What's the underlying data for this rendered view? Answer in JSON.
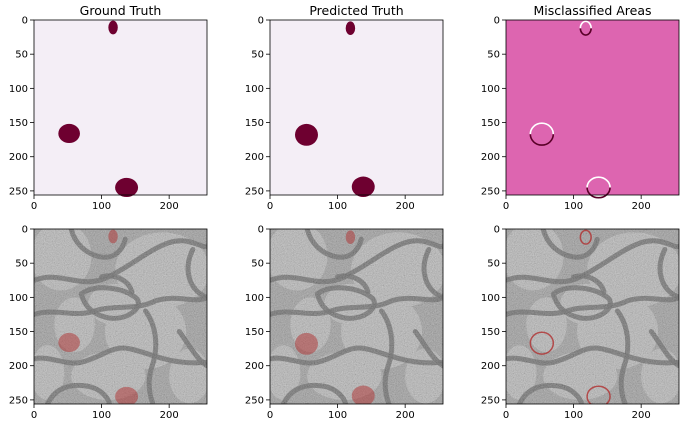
{
  "chart_data": [
    {
      "type": "heatmap",
      "title": "Ground Truth",
      "image": "binary-mask",
      "colormap": [
        "#f4eef6",
        "#6e0030"
      ],
      "xlim": [
        0,
        256
      ],
      "ylim": [
        256,
        0
      ],
      "xticks": [
        0,
        100,
        200
      ],
      "yticks": [
        0,
        50,
        100,
        150,
        200,
        250
      ],
      "blobs": [
        {
          "label": "top",
          "cx": 117,
          "cy": 11,
          "rx": 7,
          "ry": 10
        },
        {
          "label": "left",
          "cx": 52,
          "cy": 166,
          "rx": 16,
          "ry": 14
        },
        {
          "label": "bottom",
          "cx": 137,
          "cy": 245,
          "rx": 17,
          "ry": 14
        }
      ]
    },
    {
      "type": "heatmap",
      "title": "Predicted Truth",
      "image": "binary-mask",
      "colormap": [
        "#f4eef6",
        "#6e0030"
      ],
      "xlim": [
        0,
        256
      ],
      "ylim": [
        256,
        0
      ],
      "xticks": [
        0,
        100,
        200
      ],
      "yticks": [
        0,
        50,
        100,
        150,
        200,
        250
      ],
      "blobs": [
        {
          "label": "top",
          "cx": 119,
          "cy": 12,
          "rx": 7,
          "ry": 10
        },
        {
          "label": "left",
          "cx": 54,
          "cy": 168,
          "rx": 17,
          "ry": 16
        },
        {
          "label": "bottom",
          "cx": 138,
          "cy": 244,
          "rx": 17,
          "ry": 15
        }
      ]
    },
    {
      "type": "heatmap",
      "title": "Misclassified Areas",
      "image": "error-map",
      "colormap": [
        "#dd65b0",
        "#5a0028",
        "#ffffff"
      ],
      "xlim": [
        0,
        256
      ],
      "ylim": [
        256,
        0
      ],
      "xticks": [
        0,
        100,
        200
      ],
      "yticks": [
        0,
        50,
        100,
        150,
        200,
        250
      ],
      "error_rings": [
        {
          "cx": 118,
          "cy": 12,
          "rx": 8,
          "ry": 10
        },
        {
          "cx": 53,
          "cy": 167,
          "rx": 17,
          "ry": 16
        },
        {
          "cx": 137,
          "cy": 245,
          "rx": 17,
          "ry": 15
        }
      ]
    },
    {
      "type": "image",
      "title": "",
      "image": "grayscale-micrograph-overlay",
      "overlay_color": "#b03030",
      "xlim": [
        0,
        256
      ],
      "ylim": [
        256,
        0
      ],
      "xticks": [
        0,
        100,
        200
      ],
      "yticks": [
        0,
        50,
        100,
        150,
        200,
        250
      ]
    },
    {
      "type": "image",
      "title": "",
      "image": "grayscale-micrograph-overlay",
      "overlay_color": "#b03030",
      "xlim": [
        0,
        256
      ],
      "ylim": [
        256,
        0
      ],
      "xticks": [
        0,
        100,
        200
      ],
      "yticks": [
        0,
        50,
        100,
        150,
        200,
        250
      ]
    },
    {
      "type": "image",
      "title": "",
      "image": "grayscale-micrograph-overlay",
      "overlay_color": "#b03030",
      "xlim": [
        0,
        256
      ],
      "ylim": [
        256,
        0
      ],
      "xticks": [
        0,
        100,
        200
      ],
      "yticks": [
        0,
        50,
        100,
        150,
        200,
        250
      ]
    }
  ]
}
